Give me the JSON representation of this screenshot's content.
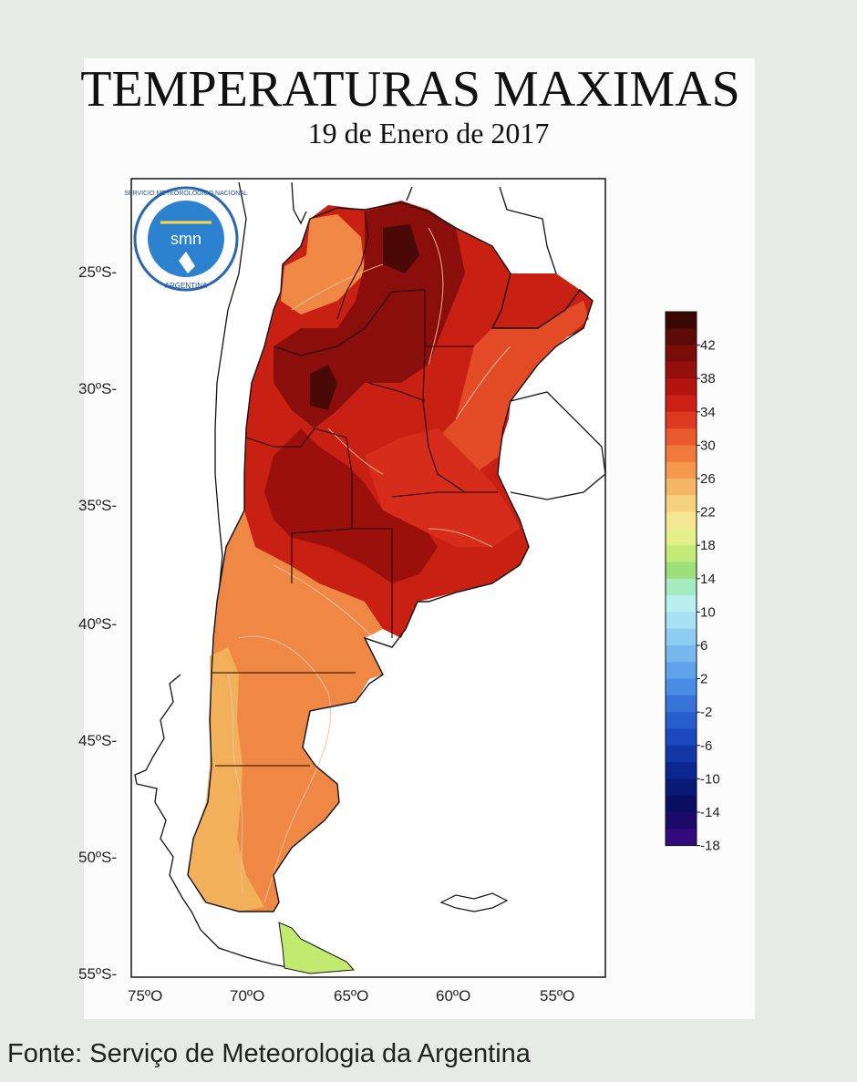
{
  "title": "TEMPERATURAS MAXIMAS",
  "subtitle": "19 de Enero de 2017",
  "source": "Fonte: Serviço de Meteorologia da Argentina",
  "logo": {
    "top_text": "SERVICIO METEOROLOGICO NACIONAL",
    "center_text": "smn",
    "bottom_text": "ARGENTINA"
  },
  "map": {
    "lat_labels": [
      "25ºS-",
      "30ºS-",
      "35ºS-",
      "40ºS-",
      "45ºS-",
      "50ºS-",
      "55ºS-"
    ],
    "lon_labels": [
      "75ºO",
      "70ºO",
      "65ºO",
      "60ºO",
      "55ºO"
    ],
    "frame_color": "#111111"
  },
  "legend": {
    "labels": [
      "42",
      "38",
      "34",
      "30",
      "26",
      "22",
      "18",
      "14",
      "10",
      "6",
      "2",
      "-2",
      "-6",
      "-10",
      "-14",
      "-18"
    ],
    "colors": [
      "#3a0705",
      "#5d0b08",
      "#7a0d0a",
      "#950f0c",
      "#b3140f",
      "#cc1f15",
      "#de3a22",
      "#ea5a2c",
      "#f07a3c",
      "#f4994e",
      "#f6b564",
      "#f7d27e",
      "#f4e793",
      "#e4ef8c",
      "#c4ea7a",
      "#9de07a",
      "#a6ecc2",
      "#b8f0ef",
      "#a9e0f6",
      "#8fccf2",
      "#77b8ef",
      "#5fa2ea",
      "#4a8be3",
      "#3873da",
      "#285dce",
      "#1b48bd",
      "#1236a6",
      "#0b268e",
      "#081976",
      "#0b0f62",
      "#1b0a6a",
      "#330a7e"
    ]
  }
}
